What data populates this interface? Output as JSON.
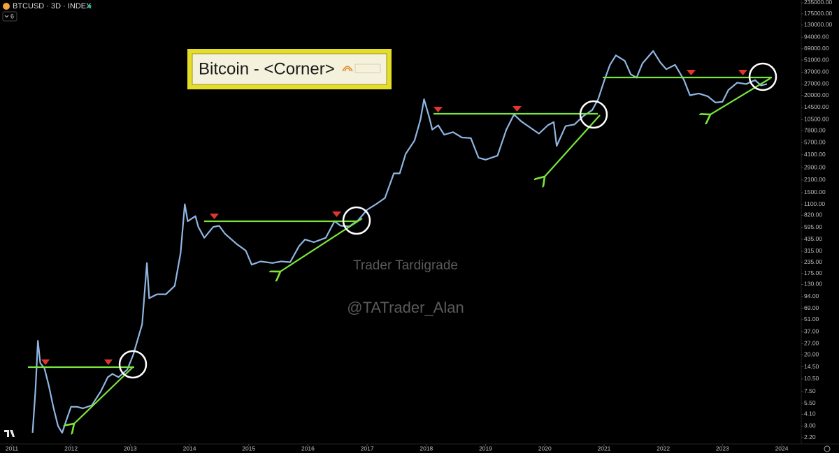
{
  "chart_data": {
    "type": "line",
    "symbol": "BTCUSD · 3D · INDEX",
    "interval_badge": "6",
    "title": "Bitcoin - <Corner>",
    "annotations": [
      "Trader Tardigrade",
      "@TATrader_Alan"
    ],
    "log_scale": true,
    "color": "#8fb6e2",
    "xlim": [
      2010.8,
      2024.33
    ],
    "xticks": [
      2011,
      2012,
      2013,
      2014,
      2015,
      2016,
      2017,
      2018,
      2019,
      2020,
      2021,
      2022,
      2023,
      2024
    ],
    "ylim": [
      1.86,
      253000
    ],
    "yticks": [
      {
        "value": 2.2,
        "label": "2.20"
      },
      {
        "value": 3,
        "label": "3.00"
      },
      {
        "value": 4.1,
        "label": "4.10"
      },
      {
        "value": 5.5,
        "label": "5.50"
      },
      {
        "value": 7.5,
        "label": "7.50"
      },
      {
        "value": 10.5,
        "label": "10.50"
      },
      {
        "value": 14.5,
        "label": "14.50"
      },
      {
        "value": 20,
        "label": "20.00"
      },
      {
        "value": 27,
        "label": "27.00"
      },
      {
        "value": 37,
        "label": "37.00"
      },
      {
        "value": 51,
        "label": "51.00"
      },
      {
        "value": 69,
        "label": "69.00"
      },
      {
        "value": 94,
        "label": "94.00"
      },
      {
        "value": 130,
        "label": "130.00"
      },
      {
        "value": 175,
        "label": "175.00"
      },
      {
        "value": 235,
        "label": "235.00"
      },
      {
        "value": 315,
        "label": "315.00"
      },
      {
        "value": 435,
        "label": "435.00"
      },
      {
        "value": 595,
        "label": "595.00"
      },
      {
        "value": 820,
        "label": "820.00"
      },
      {
        "value": 1100,
        "label": "1100.00"
      },
      {
        "value": 1500,
        "label": "1500.00"
      },
      {
        "value": 2100,
        "label": "2100.00"
      },
      {
        "value": 2900,
        "label": "2900.00"
      },
      {
        "value": 4100,
        "label": "4100.00"
      },
      {
        "value": 5700,
        "label": "5700.00"
      },
      {
        "value": 7800,
        "label": "7800.00"
      },
      {
        "value": 10500,
        "label": "10500.00"
      },
      {
        "value": 14500,
        "label": "14500.00"
      },
      {
        "value": 20000,
        "label": "20000.00"
      },
      {
        "value": 27000,
        "label": "27000.00"
      },
      {
        "value": 37000,
        "label": "37000.00"
      },
      {
        "value": 51000,
        "label": "51000.00"
      },
      {
        "value": 69000,
        "label": "69000.00"
      },
      {
        "value": 94000,
        "label": "94000.00"
      },
      {
        "value": 130000,
        "label": "130000.00"
      },
      {
        "value": 175000,
        "label": "175000.00"
      },
      {
        "value": 235000,
        "label": "235000.00"
      }
    ],
    "x": [
      2011.35,
      2011.4,
      2011.44,
      2011.48,
      2011.55,
      2011.62,
      2011.7,
      2011.78,
      2011.85,
      2011.92,
      2012.0,
      2012.1,
      2012.2,
      2012.35,
      2012.5,
      2012.62,
      2012.7,
      2012.8,
      2012.95,
      2013.05,
      2013.2,
      2013.28,
      2013.32,
      2013.45,
      2013.6,
      2013.75,
      2013.85,
      2013.92,
      2013.97,
      2014.1,
      2014.15,
      2014.25,
      2014.4,
      2014.5,
      2014.6,
      2014.8,
      2014.95,
      2015.05,
      2015.2,
      2015.4,
      2015.55,
      2015.7,
      2015.85,
      2015.95,
      2016.1,
      2016.3,
      2016.45,
      2016.55,
      2016.7,
      2016.85,
      2017.0,
      2017.15,
      2017.3,
      2017.45,
      2017.55,
      2017.65,
      2017.8,
      2017.9,
      2017.96,
      2018.05,
      2018.1,
      2018.2,
      2018.3,
      2018.45,
      2018.6,
      2018.75,
      2018.88,
      2019.0,
      2019.2,
      2019.35,
      2019.48,
      2019.6,
      2019.75,
      2019.9,
      2020.05,
      2020.15,
      2020.2,
      2020.35,
      2020.5,
      2020.65,
      2020.8,
      2020.9,
      2021.0,
      2021.1,
      2021.2,
      2021.35,
      2021.45,
      2021.55,
      2021.65,
      2021.83,
      2021.95,
      2022.05,
      2022.2,
      2022.35,
      2022.45,
      2022.6,
      2022.75,
      2022.88,
      2023.0,
      2023.1,
      2023.25,
      2023.4,
      2023.55,
      2023.65,
      2023.75
    ],
    "values": [
      2.5,
      8,
      29,
      16,
      14,
      9,
      5,
      3,
      2.5,
      3.5,
      5,
      5,
      4.8,
      5.2,
      7.5,
      11,
      12,
      11,
      13.5,
      20,
      45,
      230,
      90,
      100,
      100,
      125,
      300,
      1100,
      700,
      800,
      600,
      450,
      600,
      620,
      500,
      380,
      320,
      220,
      240,
      230,
      240,
      235,
      360,
      430,
      400,
      450,
      700,
      620,
      610,
      720,
      950,
      1100,
      1300,
      2500,
      2500,
      4200,
      6000,
      10500,
      18000,
      11000,
      8000,
      9000,
      7000,
      7500,
      6500,
      6400,
      3800,
      3600,
      4000,
      8000,
      12000,
      10000,
      8500,
      7200,
      9000,
      9800,
      5200,
      8800,
      9200,
      11500,
      13500,
      18000,
      29000,
      45000,
      58000,
      50000,
      35000,
      32000,
      47000,
      65000,
      48000,
      40000,
      45000,
      30000,
      20000,
      21000,
      19500,
      16500,
      16800,
      23000,
      28000,
      27000,
      30000,
      26000,
      27000
    ]
  }
}
